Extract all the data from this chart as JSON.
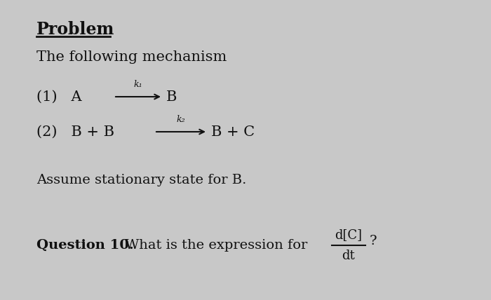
{
  "bg_color": "#c8c8c8",
  "text_color": "#111111",
  "title": "Problem",
  "subtitle": "The following mechanism",
  "reaction1_prefix": "(1)   A",
  "reaction1_k": "k₁",
  "reaction2_prefix": "(2)   B + B",
  "reaction2_k": "k₂",
  "reaction2_suffix": "B + C",
  "stationary": "Assume stationary state for B.",
  "question_bold": "Question 10.",
  "question_normal": " What is the expression for ",
  "fraction_num": "d[C]",
  "fraction_den": "dt",
  "fraction_q": "?",
  "fig_width": 7.0,
  "fig_height": 4.28,
  "dpi": 100
}
